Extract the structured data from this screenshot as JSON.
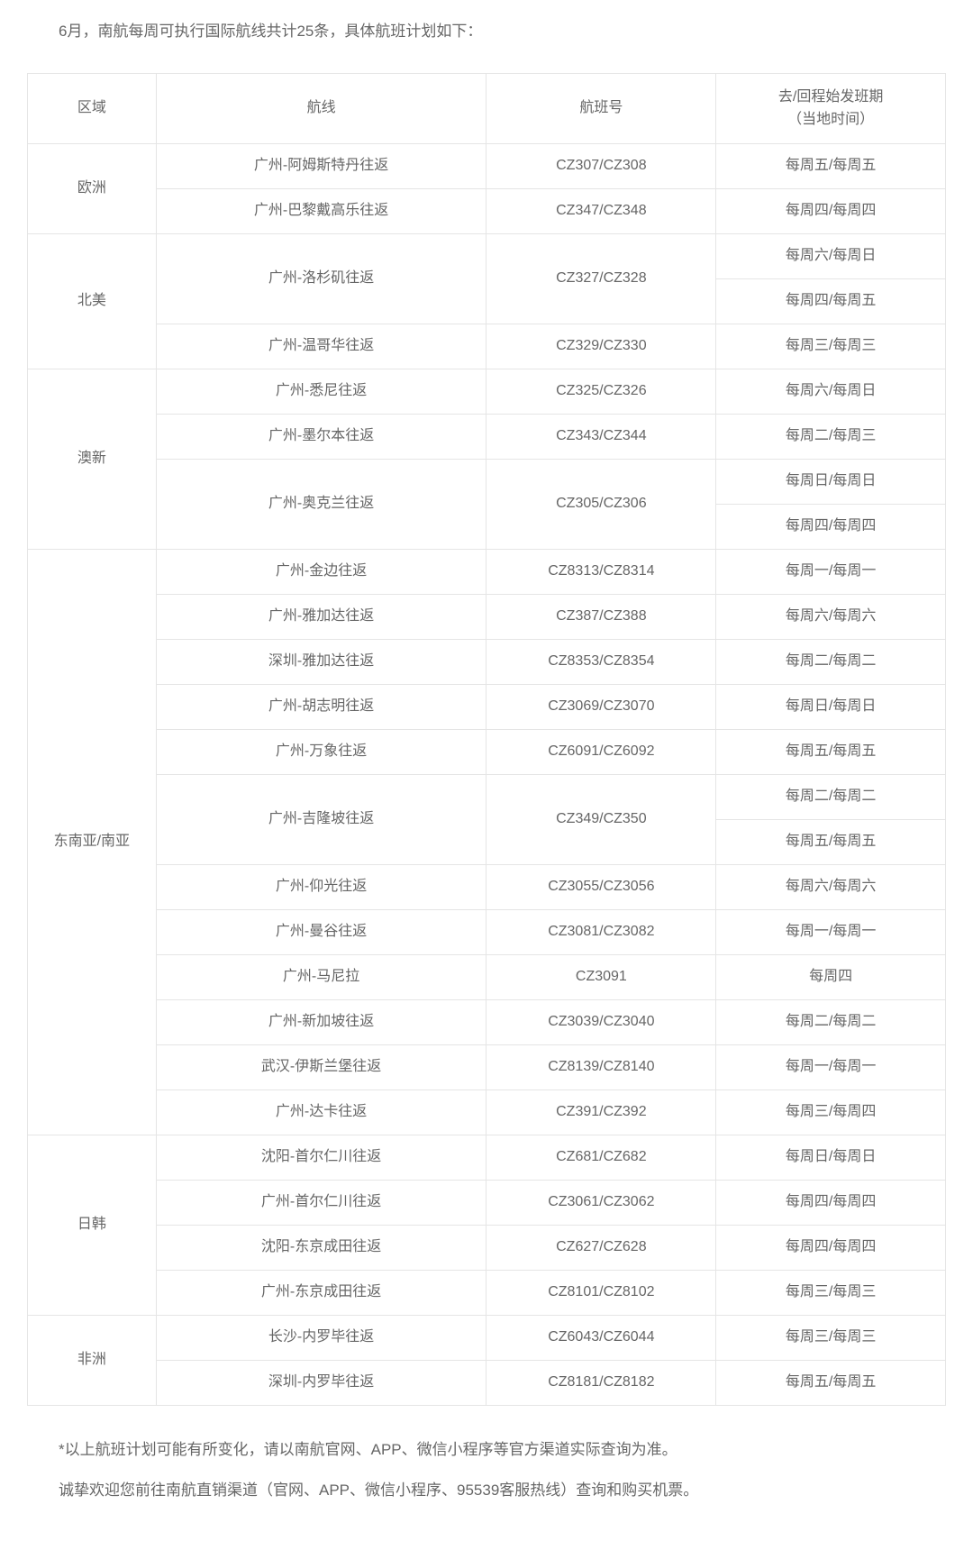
{
  "intro": "6月，南航每周可执行国际航线共计25条，具体航班计划如下：",
  "columns": {
    "region": "区域",
    "route": "航线",
    "flight_no": "航班号",
    "schedule": "去/回程始发班期\n（当地时间）"
  },
  "rows": [
    {
      "region": "欧洲",
      "region_rowspan": 2,
      "route": "广州-阿姆斯特丹往返",
      "route_rowspan": 1,
      "flight": "CZ307/CZ308",
      "flight_rowspan": 1,
      "schedule": "每周五/每周五"
    },
    {
      "route": "广州-巴黎戴高乐往返",
      "route_rowspan": 1,
      "flight": "CZ347/CZ348",
      "flight_rowspan": 1,
      "schedule": "每周四/每周四"
    },
    {
      "region": "北美",
      "region_rowspan": 3,
      "route": "广州-洛杉矶往返",
      "route_rowspan": 2,
      "flight": "CZ327/CZ328",
      "flight_rowspan": 2,
      "schedule": "每周六/每周日"
    },
    {
      "schedule": "每周四/每周五"
    },
    {
      "route": "广州-温哥华往返",
      "route_rowspan": 1,
      "flight": "CZ329/CZ330",
      "flight_rowspan": 1,
      "schedule": "每周三/每周三"
    },
    {
      "region": "澳新",
      "region_rowspan": 4,
      "route": "广州-悉尼往返",
      "route_rowspan": 1,
      "flight": "CZ325/CZ326",
      "flight_rowspan": 1,
      "schedule": "每周六/每周日"
    },
    {
      "route": "广州-墨尔本往返",
      "route_rowspan": 1,
      "flight": "CZ343/CZ344",
      "flight_rowspan": 1,
      "schedule": "每周二/每周三"
    },
    {
      "route": "广州-奥克兰往返",
      "route_rowspan": 2,
      "flight": "CZ305/CZ306",
      "flight_rowspan": 2,
      "schedule": "每周日/每周日"
    },
    {
      "schedule": "每周四/每周四"
    },
    {
      "region": "东南亚/南亚",
      "region_rowspan": 13,
      "route": "广州-金边往返",
      "route_rowspan": 1,
      "flight": "CZ8313/CZ8314",
      "flight_rowspan": 1,
      "schedule": "每周一/每周一"
    },
    {
      "route": "广州-雅加达往返",
      "route_rowspan": 1,
      "flight": "CZ387/CZ388",
      "flight_rowspan": 1,
      "schedule": "每周六/每周六"
    },
    {
      "route": "深圳-雅加达往返",
      "route_rowspan": 1,
      "flight": "CZ8353/CZ8354",
      "flight_rowspan": 1,
      "schedule": "每周二/每周二"
    },
    {
      "route": "广州-胡志明往返",
      "route_rowspan": 1,
      "flight": "CZ3069/CZ3070",
      "flight_rowspan": 1,
      "schedule": "每周日/每周日"
    },
    {
      "route": "广州-万象往返",
      "route_rowspan": 1,
      "flight": "CZ6091/CZ6092",
      "flight_rowspan": 1,
      "schedule": "每周五/每周五"
    },
    {
      "route": "广州-吉隆坡往返",
      "route_rowspan": 2,
      "flight": "CZ349/CZ350",
      "flight_rowspan": 2,
      "schedule": "每周二/每周二"
    },
    {
      "schedule": "每周五/每周五"
    },
    {
      "route": "广州-仰光往返",
      "route_rowspan": 1,
      "flight": "CZ3055/CZ3056",
      "flight_rowspan": 1,
      "schedule": "每周六/每周六"
    },
    {
      "route": "广州-曼谷往返",
      "route_rowspan": 1,
      "flight": "CZ3081/CZ3082",
      "flight_rowspan": 1,
      "schedule": "每周一/每周一"
    },
    {
      "route": "广州-马尼拉",
      "route_rowspan": 1,
      "flight": "CZ3091",
      "flight_rowspan": 1,
      "schedule": "每周四"
    },
    {
      "route": "广州-新加坡往返",
      "route_rowspan": 1,
      "flight": "CZ3039/CZ3040",
      "flight_rowspan": 1,
      "schedule": "每周二/每周二"
    },
    {
      "route": "武汉-伊斯兰堡往返",
      "route_rowspan": 1,
      "flight": "CZ8139/CZ8140",
      "flight_rowspan": 1,
      "schedule": "每周一/每周一"
    },
    {
      "route": "广州-达卡往返",
      "route_rowspan": 1,
      "flight": "CZ391/CZ392",
      "flight_rowspan": 1,
      "schedule": "每周三/每周四"
    },
    {
      "region": "日韩",
      "region_rowspan": 4,
      "route": "沈阳-首尔仁川往返",
      "route_rowspan": 1,
      "flight": "CZ681/CZ682",
      "flight_rowspan": 1,
      "schedule": "每周日/每周日"
    },
    {
      "route": "广州-首尔仁川往返",
      "route_rowspan": 1,
      "flight": "CZ3061/CZ3062",
      "flight_rowspan": 1,
      "schedule": "每周四/每周四"
    },
    {
      "route": "沈阳-东京成田往返",
      "route_rowspan": 1,
      "flight": "CZ627/CZ628",
      "flight_rowspan": 1,
      "schedule": "每周四/每周四"
    },
    {
      "route": "广州-东京成田往返",
      "route_rowspan": 1,
      "flight": "CZ8101/CZ8102",
      "flight_rowspan": 1,
      "schedule": "每周三/每周三"
    },
    {
      "region": "非洲",
      "region_rowspan": 2,
      "route": "长沙-内罗毕往返",
      "route_rowspan": 1,
      "flight": "CZ6043/CZ6044",
      "flight_rowspan": 1,
      "schedule": "每周三/每周三"
    },
    {
      "route": "深圳-内罗毕往返",
      "route_rowspan": 1,
      "flight": "CZ8181/CZ8182",
      "flight_rowspan": 1,
      "schedule": "每周五/每周五"
    }
  ],
  "footnote1": "*以上航班计划可能有所变化，请以南航官网、APP、微信小程序等官方渠道实际查询为准。",
  "footnote2": "诚挚欢迎您前往南航直销渠道（官网、APP、微信小程序、95539客服热线）查询和购买机票。",
  "colors": {
    "text": "#666666",
    "border": "#e5e5e5",
    "background": "#ffffff"
  }
}
